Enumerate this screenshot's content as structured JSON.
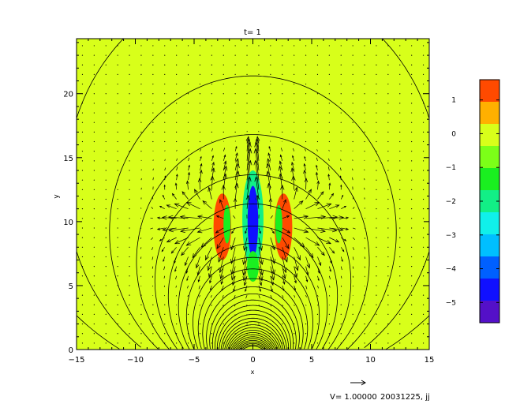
{
  "chart_data": {
    "type": "heatmap",
    "title": "t= 1",
    "xlabel": "x",
    "ylabel": "y",
    "xlim": [
      -15,
      15
    ],
    "ylim": [
      0,
      24.3
    ],
    "x_ticks": [
      -15,
      -10,
      -5,
      0,
      5,
      10,
      15
    ],
    "y_ticks": [
      0,
      5,
      10,
      15,
      20
    ],
    "background_value": 0,
    "colorbar": {
      "range": [
        -5.6,
        1.6
      ],
      "ticks": [
        1,
        0,
        -1,
        -2,
        -3,
        -4,
        -5
      ],
      "colors": [
        "#ff4a00",
        "#ffb000",
        "#d8ff1a",
        "#7cff18",
        "#1aef20",
        "#12ef86",
        "#10f0ea",
        "#00bfff",
        "#0060ff",
        "#1010ff",
        "#5410c8"
      ]
    },
    "features": [
      {
        "shape": "ellipse",
        "cx": 0,
        "cy": 10.2,
        "rx": 0.9,
        "ry": 3.8,
        "value": -2.2
      },
      {
        "shape": "ellipse",
        "cx": 0,
        "cy": 10.0,
        "rx": 0.45,
        "ry": 2.8,
        "value": -4.6
      },
      {
        "shape": "ellipse",
        "cx": -2.6,
        "cy": 9.6,
        "rx": 0.75,
        "ry": 2.6,
        "value": 1.2
      },
      {
        "shape": "ellipse",
        "cx": 2.6,
        "cy": 9.6,
        "rx": 0.75,
        "ry": 2.6,
        "value": 1.2
      },
      {
        "shape": "ellipse",
        "cx": -2.2,
        "cy": 9.8,
        "rx": 0.3,
        "ry": 1.5,
        "value": -1.5
      },
      {
        "shape": "ellipse",
        "cx": 2.2,
        "cy": 9.8,
        "rx": 0.3,
        "ry": 1.5,
        "value": -1.5
      },
      {
        "shape": "ellipse",
        "cx": 0,
        "cy": 6.5,
        "rx": 0.5,
        "ry": 1.2,
        "value": -1.3
      }
    ],
    "overlays": [
      "magnetic field lines (contours)",
      "velocity vectors"
    ],
    "reference_arrow": {
      "label": "V= 1.00000",
      "magnitude": 1.0
    }
  },
  "footer": {
    "velocity_label": "V= 1.00000",
    "run_id": "20031225, jj"
  }
}
